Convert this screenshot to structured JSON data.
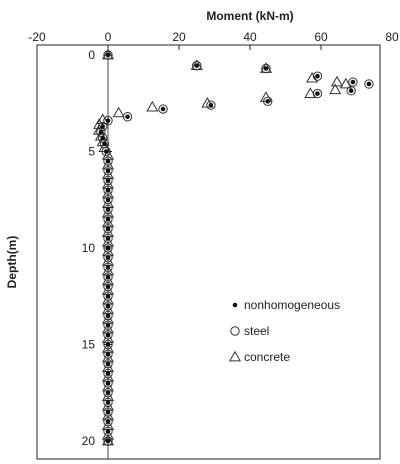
{
  "chart_data": {
    "type": "scatter",
    "title": "",
    "xlabel": "Moment (kN-m)",
    "ylabel": "Depth(m)",
    "xlim": [
      -20,
      80
    ],
    "ylim": [
      0,
      21
    ],
    "y_reversed": true,
    "x_axis_position": "top",
    "x_ticks": [
      -20,
      0,
      20,
      40,
      60,
      80
    ],
    "y_ticks": [
      0,
      5,
      10,
      15,
      20
    ],
    "grid": false,
    "legend_position": "lower-right",
    "series": [
      {
        "name": "nonhomogeneous",
        "marker": "filled-circle",
        "points": [
          [
            0,
            0
          ],
          [
            25,
            0.55
          ],
          [
            44.5,
            0.7
          ],
          [
            59,
            1.1
          ],
          [
            69,
            1.4
          ],
          [
            73.5,
            1.5
          ],
          [
            68.5,
            1.85
          ],
          [
            59,
            2.0
          ],
          [
            45,
            2.4
          ],
          [
            29,
            2.6
          ],
          [
            15.5,
            2.8
          ],
          [
            5.5,
            3.2
          ],
          [
            0,
            3.4
          ],
          [
            -1.5,
            3.7
          ],
          [
            -2,
            4.0
          ],
          [
            -1.5,
            4.3
          ],
          [
            -1,
            4.6
          ],
          [
            -0.5,
            5.0
          ],
          [
            0,
            5.5
          ],
          [
            0,
            6.0
          ],
          [
            0,
            6.5
          ],
          [
            0,
            7.0
          ],
          [
            0,
            7.5
          ],
          [
            0,
            8.0
          ],
          [
            0,
            8.5
          ],
          [
            0,
            9.0
          ],
          [
            0,
            9.5
          ],
          [
            0,
            10.0
          ],
          [
            0,
            10.5
          ],
          [
            0,
            11.0
          ],
          [
            0,
            11.5
          ],
          [
            0,
            12.0
          ],
          [
            0,
            12.5
          ],
          [
            0,
            13.0
          ],
          [
            0,
            13.5
          ],
          [
            0,
            14.0
          ],
          [
            0,
            14.5
          ],
          [
            0,
            15.0
          ],
          [
            0,
            15.5
          ],
          [
            0,
            16.0
          ],
          [
            0,
            16.5
          ],
          [
            0,
            17.0
          ],
          [
            0,
            17.5
          ],
          [
            0,
            18.0
          ],
          [
            0,
            18.5
          ],
          [
            0,
            19.0
          ],
          [
            0,
            19.5
          ],
          [
            0,
            20.0
          ]
        ]
      },
      {
        "name": "steel",
        "marker": "open-circle",
        "points": [
          [
            0,
            0
          ],
          [
            25,
            0.55
          ],
          [
            44.5,
            0.7
          ],
          [
            59,
            1.1
          ],
          [
            69,
            1.4
          ],
          [
            73.5,
            1.5
          ],
          [
            68.5,
            1.85
          ],
          [
            59,
            2.0
          ],
          [
            45,
            2.4
          ],
          [
            29,
            2.6
          ],
          [
            15.5,
            2.8
          ],
          [
            5.5,
            3.2
          ],
          [
            0,
            3.4
          ],
          [
            -1.5,
            3.7
          ],
          [
            -2,
            4.0
          ],
          [
            -1.5,
            4.3
          ],
          [
            -1,
            4.6
          ],
          [
            -0.5,
            5.0
          ],
          [
            0,
            5.5
          ],
          [
            0,
            6.0
          ],
          [
            0,
            6.5
          ],
          [
            0,
            7.0
          ],
          [
            0,
            7.5
          ],
          [
            0,
            8.0
          ],
          [
            0,
            8.5
          ],
          [
            0,
            9.0
          ],
          [
            0,
            9.5
          ],
          [
            0,
            10.0
          ],
          [
            0,
            10.5
          ],
          [
            0,
            11.0
          ],
          [
            0,
            11.5
          ],
          [
            0,
            12.0
          ],
          [
            0,
            12.5
          ],
          [
            0,
            13.0
          ],
          [
            0,
            13.5
          ],
          [
            0,
            14.0
          ],
          [
            0,
            14.5
          ],
          [
            0,
            15.0
          ],
          [
            0,
            15.5
          ],
          [
            0,
            16.0
          ],
          [
            0,
            16.5
          ],
          [
            0,
            17.0
          ],
          [
            0,
            17.5
          ],
          [
            0,
            18.0
          ],
          [
            0,
            18.5
          ],
          [
            0,
            19.0
          ],
          [
            0,
            19.5
          ],
          [
            0,
            20.0
          ]
        ]
      },
      {
        "name": "concrete",
        "marker": "open-triangle",
        "points": [
          [
            0,
            0
          ],
          [
            25,
            0.55
          ],
          [
            44.5,
            0.7
          ],
          [
            57.5,
            1.2
          ],
          [
            64.5,
            1.4
          ],
          [
            67,
            1.5
          ],
          [
            64,
            1.8
          ],
          [
            57,
            2.0
          ],
          [
            44.5,
            2.2
          ],
          [
            28,
            2.5
          ],
          [
            12.5,
            2.7
          ],
          [
            3,
            3.0
          ],
          [
            -1.5,
            3.35
          ],
          [
            -2.5,
            3.6
          ],
          [
            -2.5,
            3.9
          ],
          [
            -2,
            4.2
          ],
          [
            -1.5,
            4.5
          ],
          [
            -1,
            4.8
          ],
          [
            0,
            5.2
          ],
          [
            0,
            5.7
          ],
          [
            0,
            6.2
          ],
          [
            0,
            6.7
          ],
          [
            0,
            7.2
          ],
          [
            0,
            7.7
          ],
          [
            0,
            8.2
          ],
          [
            0,
            8.7
          ],
          [
            0,
            9.2
          ],
          [
            0,
            9.7
          ],
          [
            0,
            10.2
          ],
          [
            0,
            10.7
          ],
          [
            0,
            11.2
          ],
          [
            0,
            11.7
          ],
          [
            0,
            12.2
          ],
          [
            0,
            12.7
          ],
          [
            0,
            13.2
          ],
          [
            0,
            13.7
          ],
          [
            0,
            14.2
          ],
          [
            0,
            14.7
          ],
          [
            0,
            15.2
          ],
          [
            0,
            15.7
          ],
          [
            0,
            16.2
          ],
          [
            0,
            16.7
          ],
          [
            0,
            17.2
          ],
          [
            0,
            17.7
          ],
          [
            0,
            18.2
          ],
          [
            0,
            18.7
          ],
          [
            0,
            19.2
          ],
          [
            0,
            19.7
          ],
          [
            0,
            20.0
          ]
        ]
      }
    ]
  }
}
